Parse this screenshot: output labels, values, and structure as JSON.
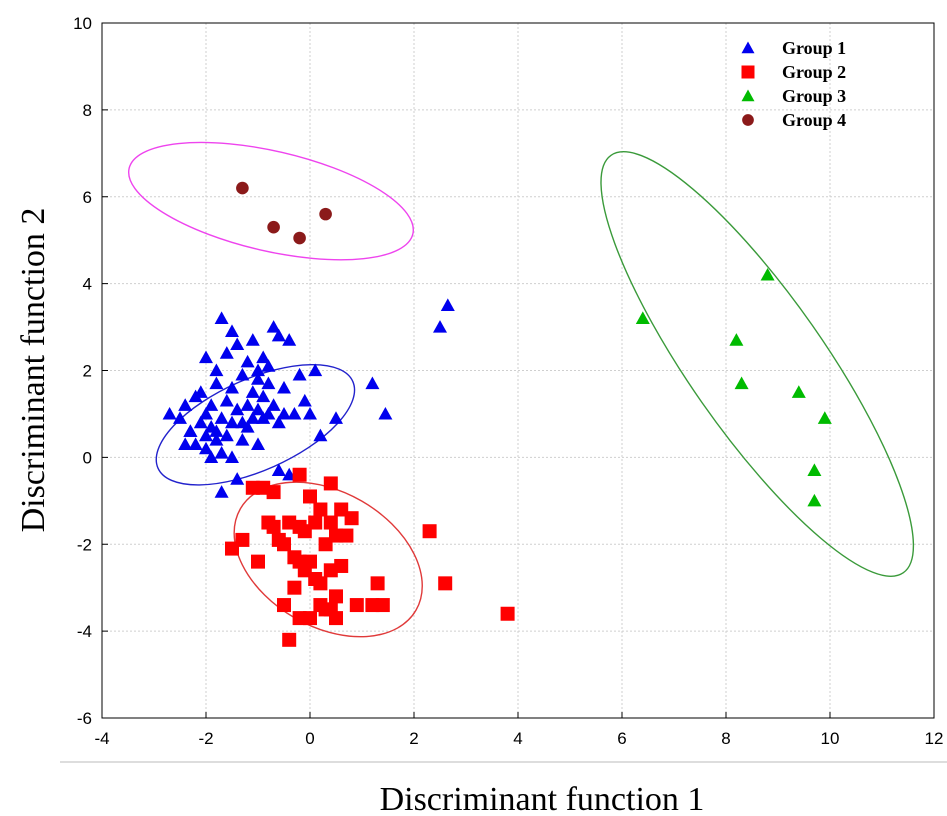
{
  "chart_data": {
    "type": "scatter",
    "xlabel": "Discriminant  function 1",
    "ylabel": "Discriminant  function 2",
    "xlim": [
      -4,
      12
    ],
    "ylim": [
      -6,
      10
    ],
    "xticks": [
      "-4",
      "-2",
      "0",
      "2",
      "4",
      "6",
      "8",
      "10",
      "12"
    ],
    "yticks": [
      "-6",
      "-4",
      "-2",
      "0",
      "2",
      "4",
      "6",
      "8",
      "10"
    ],
    "grid": true,
    "legend_position": "top-right",
    "series": [
      {
        "name": "Group 1",
        "marker": "triangle",
        "color": "#0000ee",
        "points": [
          [
            -2.7,
            1.0
          ],
          [
            -2.5,
            0.9
          ],
          [
            -2.4,
            1.2
          ],
          [
            -2.3,
            0.6
          ],
          [
            -2.2,
            0.3
          ],
          [
            -2.2,
            1.4
          ],
          [
            -2.1,
            0.8
          ],
          [
            -2.1,
            1.5
          ],
          [
            -2.0,
            0.2
          ],
          [
            -2.0,
            0.5
          ],
          [
            -2.0,
            1.0
          ],
          [
            -2.0,
            2.3
          ],
          [
            -1.9,
            0.0
          ],
          [
            -1.9,
            0.7
          ],
          [
            -1.9,
            1.2
          ],
          [
            -1.8,
            0.4
          ],
          [
            -1.8,
            1.7
          ],
          [
            -1.8,
            2.0
          ],
          [
            -1.7,
            0.1
          ],
          [
            -1.7,
            0.9
          ],
          [
            -1.7,
            3.2
          ],
          [
            -1.6,
            0.5
          ],
          [
            -1.6,
            1.3
          ],
          [
            -1.6,
            2.4
          ],
          [
            -1.5,
            0.0
          ],
          [
            -1.5,
            0.8
          ],
          [
            -1.5,
            1.6
          ],
          [
            -1.5,
            2.9
          ],
          [
            -1.4,
            1.1
          ],
          [
            -1.4,
            2.6
          ],
          [
            -1.3,
            0.4
          ],
          [
            -1.3,
            0.8
          ],
          [
            -1.3,
            1.9
          ],
          [
            -1.2,
            1.2
          ],
          [
            -1.2,
            2.2
          ],
          [
            -1.2,
            0.7
          ],
          [
            -1.1,
            1.5
          ],
          [
            -1.1,
            0.9
          ],
          [
            -1.1,
            2.7
          ],
          [
            -1.0,
            1.8
          ],
          [
            -1.0,
            1.1
          ],
          [
            -1.0,
            2.0
          ],
          [
            -0.9,
            0.9
          ],
          [
            -0.9,
            1.4
          ],
          [
            -0.9,
            2.3
          ],
          [
            -0.8,
            1.0
          ],
          [
            -0.8,
            1.7
          ],
          [
            -0.8,
            2.1
          ],
          [
            -0.7,
            3.0
          ],
          [
            -0.7,
            1.2
          ],
          [
            -0.6,
            0.8
          ],
          [
            -0.6,
            2.8
          ],
          [
            -0.5,
            1.0
          ],
          [
            -0.5,
            1.6
          ],
          [
            -0.4,
            2.7
          ],
          [
            -0.3,
            1.0
          ],
          [
            -0.2,
            1.9
          ],
          [
            -0.1,
            1.3
          ],
          [
            0.0,
            1.0
          ],
          [
            0.1,
            2.0
          ],
          [
            0.2,
            0.5
          ],
          [
            0.5,
            0.9
          ],
          [
            1.2,
            1.7
          ],
          [
            1.45,
            1.0
          ],
          [
            2.5,
            3.0
          ],
          [
            2.65,
            3.5
          ],
          [
            -1.7,
            -0.8
          ],
          [
            -1.4,
            -0.5
          ],
          [
            -0.6,
            -0.3
          ],
          [
            -0.4,
            -0.4
          ],
          [
            -2.4,
            0.3
          ],
          [
            -2.3,
            0.6
          ],
          [
            -1.8,
            0.6
          ],
          [
            -1.0,
            0.3
          ]
        ]
      },
      {
        "name": "Group 2",
        "marker": "square",
        "color": "#ff0000",
        "points": [
          [
            -1.5,
            -2.1
          ],
          [
            -1.3,
            -1.9
          ],
          [
            -1.1,
            -0.7
          ],
          [
            -1.0,
            -2.4
          ],
          [
            -0.9,
            -0.7
          ],
          [
            -0.8,
            -1.5
          ],
          [
            -0.7,
            -0.8
          ],
          [
            -0.7,
            -1.6
          ],
          [
            -0.6,
            -1.9
          ],
          [
            -0.5,
            -2.0
          ],
          [
            -0.5,
            -3.4
          ],
          [
            -0.4,
            -4.2
          ],
          [
            -0.4,
            -1.5
          ],
          [
            -0.3,
            -2.3
          ],
          [
            -0.3,
            -3.0
          ],
          [
            -0.2,
            -0.4
          ],
          [
            -0.2,
            -2.4
          ],
          [
            -0.2,
            -3.7
          ],
          [
            -0.1,
            -1.7
          ],
          [
            -0.1,
            -2.6
          ],
          [
            0.0,
            -2.4
          ],
          [
            0.0,
            -3.7
          ],
          [
            0.1,
            -2.8
          ],
          [
            0.1,
            -1.5
          ],
          [
            0.2,
            -1.2
          ],
          [
            0.2,
            -2.9
          ],
          [
            0.3,
            -3.5
          ],
          [
            0.3,
            -2.0
          ],
          [
            0.4,
            -0.6
          ],
          [
            0.4,
            -1.5
          ],
          [
            0.4,
            -3.5
          ],
          [
            0.5,
            -1.8
          ],
          [
            0.5,
            -3.2
          ],
          [
            0.5,
            -3.7
          ],
          [
            0.6,
            -1.2
          ],
          [
            0.6,
            -2.5
          ],
          [
            0.7,
            -1.8
          ],
          [
            0.8,
            -1.4
          ],
          [
            0.9,
            -3.4
          ],
          [
            1.2,
            -3.4
          ],
          [
            1.3,
            -2.9
          ],
          [
            1.4,
            -3.4
          ],
          [
            2.3,
            -1.7
          ],
          [
            2.6,
            -2.9
          ],
          [
            3.8,
            -3.6
          ],
          [
            -0.2,
            -1.6
          ],
          [
            0.0,
            -0.9
          ],
          [
            0.2,
            -3.4
          ],
          [
            0.4,
            -2.6
          ]
        ]
      },
      {
        "name": "Group 3",
        "marker": "triangle",
        "color": "#00bb00",
        "points": [
          [
            6.4,
            3.2
          ],
          [
            8.2,
            2.7
          ],
          [
            8.3,
            1.7
          ],
          [
            8.8,
            4.2
          ],
          [
            9.4,
            1.5
          ],
          [
            9.7,
            -0.3
          ],
          [
            9.7,
            -1.0
          ],
          [
            9.9,
            0.9
          ]
        ]
      },
      {
        "name": "Group 4",
        "marker": "circle",
        "color": "#8b1a1a",
        "points": [
          [
            -1.3,
            6.2
          ],
          [
            -0.7,
            5.3
          ],
          [
            -0.2,
            5.05
          ],
          [
            0.3,
            5.6
          ]
        ]
      }
    ],
    "ellipses": [
      {
        "series": "Group 1",
        "color": "#2222cc",
        "cx": -1.05,
        "cy": 0.75,
        "rx": 2.05,
        "ry": 1.05,
        "angle": 24
      },
      {
        "series": "Group 2",
        "color": "#e03a3a",
        "cx": 0.35,
        "cy": -2.35,
        "rx": 1.95,
        "ry": 1.55,
        "angle": -30
      },
      {
        "series": "Group 3",
        "color": "#3a9a3a",
        "cx": 8.6,
        "cy": 2.15,
        "rx": 4.9,
        "ry": 1.55,
        "angle": -55
      },
      {
        "series": "Group 4",
        "color": "#ee44ee",
        "cx": -0.75,
        "cy": 5.9,
        "rx": 2.8,
        "ry": 1.15,
        "angle": -13
      }
    ]
  }
}
